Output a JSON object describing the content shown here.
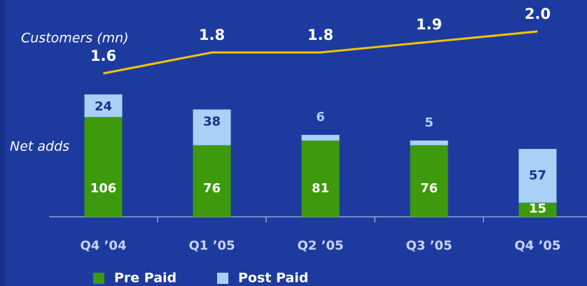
{
  "chart_data": {
    "type": "bar",
    "stacked": true,
    "categories": [
      "Q4 ’04",
      "Q1 ’05",
      "Q2 ’05",
      "Q3 ’05",
      "Q4 ’05"
    ],
    "series": [
      {
        "name": "Pre Paid",
        "color": "#3d9a0c",
        "values": [
          106,
          76,
          81,
          76,
          15
        ]
      },
      {
        "name": "Post Paid",
        "color": "#a9d1f5",
        "values": [
          24,
          38,
          6,
          5,
          57
        ]
      },
      {
        "name": "Customers (mn)",
        "type": "line",
        "color": "#f4c300",
        "values": [
          1.6,
          1.8,
          1.8,
          1.9,
          2.0
        ],
        "value_labels": [
          "1.6",
          "1.8",
          "1.8",
          "1.9",
          "2.0"
        ]
      }
    ],
    "annotations": [
      "Net adds"
    ]
  }
}
